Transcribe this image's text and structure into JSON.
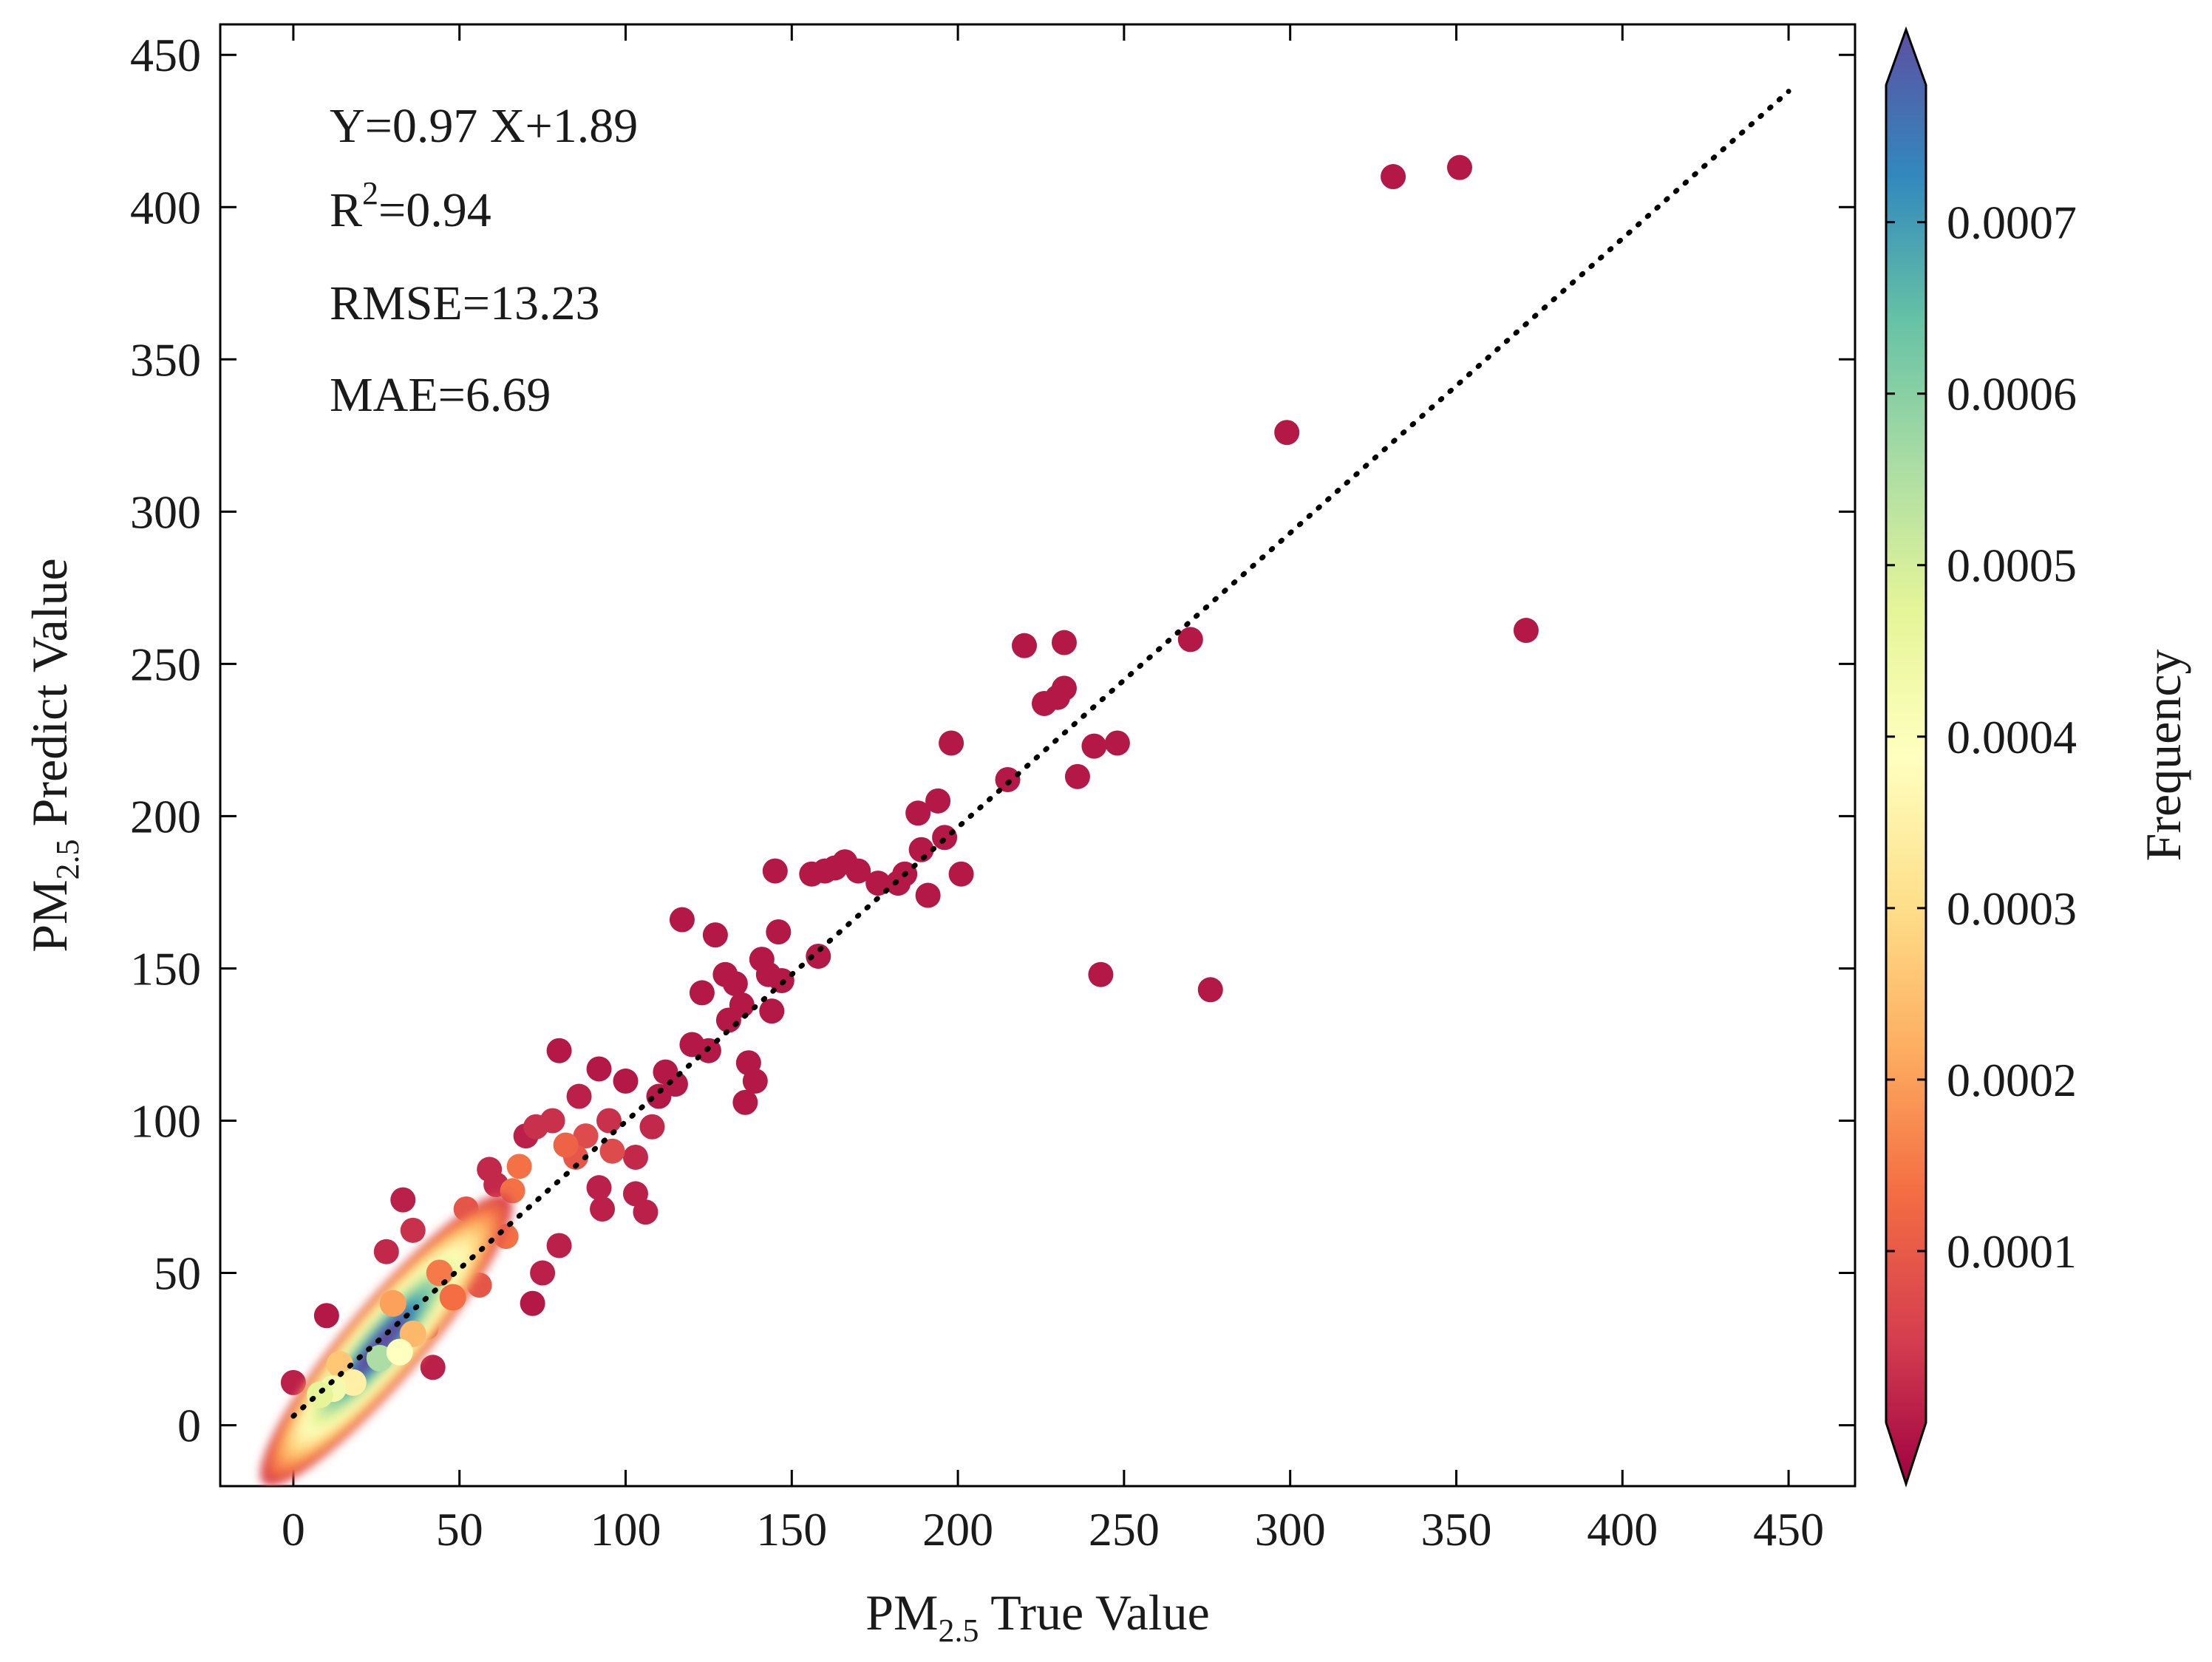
{
  "chart_data": {
    "type": "scatter",
    "title": "",
    "xlabel": {
      "base": "PM",
      "sub": "2.5",
      "rest": " True Value"
    },
    "ylabel": {
      "base": "PM",
      "sub": "2.5",
      "rest": " Predict Value"
    },
    "xlim": [
      -22,
      470
    ],
    "ylim": [
      -20,
      460
    ],
    "x_ticks": [
      0,
      50,
      100,
      150,
      200,
      250,
      300,
      350,
      400,
      450
    ],
    "x_tick_labels": [
      "0",
      "50",
      "100",
      "150",
      "200",
      "250",
      "300",
      "350",
      "400",
      "450"
    ],
    "y_ticks": [
      0,
      50,
      100,
      150,
      200,
      250,
      300,
      350,
      400,
      450
    ],
    "y_tick_labels": [
      "0",
      "50",
      "100",
      "150",
      "200",
      "250",
      "300",
      "350",
      "400",
      "450"
    ],
    "grid": false,
    "annotations": {
      "equation": "Y=0.97 X+1.89",
      "r2_base": "R",
      "r2_sup": "2",
      "r2_value": "=0.94",
      "rmse": "RMSE=13.23",
      "mae": "MAE=6.69"
    },
    "reference_line": {
      "style": "dotted",
      "color": "#000000",
      "from": [
        0,
        3
      ],
      "to": [
        450,
        438
      ]
    },
    "colorbar": {
      "label": "Frequency",
      "cmap": "Spectral",
      "range": [
        0,
        0.00078
      ],
      "ticks": [
        0.0001,
        0.0002,
        0.0003,
        0.0004,
        0.0005,
        0.0006,
        0.0007
      ],
      "tick_labels": [
        "0.0001",
        "0.0002",
        "0.0003",
        "0.0004",
        "0.0005",
        "0.0006",
        "0.0007"
      ],
      "extend": "both",
      "colors": [
        "#9e0142",
        "#d53e4f",
        "#f46d43",
        "#fdae61",
        "#fee08b",
        "#ffffbf",
        "#e6f598",
        "#abdda4",
        "#66c2a5",
        "#3288bd",
        "#5e4fa2"
      ]
    },
    "dense_cluster": {
      "description": "high-frequency core along the diagonal",
      "center": [
        24,
        26
      ],
      "density_core": 0.00078
    },
    "points": [
      [
        0,
        14,
        4e-05
      ],
      [
        10,
        36,
        3e-05
      ],
      [
        28,
        57,
        5e-05
      ],
      [
        33,
        74,
        4e-05
      ],
      [
        36,
        64,
        6e-05
      ],
      [
        42,
        19,
        4e-05
      ],
      [
        40,
        32,
        8e-05
      ],
      [
        47,
        55,
        0.0001
      ],
      [
        52,
        71,
        0.00012
      ],
      [
        56,
        46,
        0.00012
      ],
      [
        59,
        84,
        5e-05
      ],
      [
        61,
        79,
        5e-05
      ],
      [
        64,
        62,
        0.00016
      ],
      [
        66,
        77,
        0.00016
      ],
      [
        68,
        85,
        0.00016
      ],
      [
        70,
        95,
        4e-05
      ],
      [
        72,
        40,
        3e-05
      ],
      [
        75,
        50,
        4e-05
      ],
      [
        73,
        98,
        6e-05
      ],
      [
        78,
        100,
        6e-05
      ],
      [
        80,
        123,
        3e-05
      ],
      [
        80,
        59,
        4e-05
      ],
      [
        82,
        92,
        0.00014
      ],
      [
        85,
        88,
        0.00012
      ],
      [
        86,
        108,
        4e-05
      ],
      [
        88,
        95,
        0.0001
      ],
      [
        92,
        117,
        3e-05
      ],
      [
        92,
        78,
        4e-05
      ],
      [
        93,
        71,
        4e-05
      ],
      [
        95,
        100,
        6e-05
      ],
      [
        96,
        90,
        0.0001
      ],
      [
        100,
        113,
        3e-05
      ],
      [
        103,
        88,
        5e-05
      ],
      [
        103,
        76,
        4e-05
      ],
      [
        106,
        70,
        4e-05
      ],
      [
        108,
        98,
        5e-05
      ],
      [
        110,
        108,
        3e-05
      ],
      [
        112,
        116,
        3e-05
      ],
      [
        115,
        112,
        3e-05
      ],
      [
        117,
        166,
        3e-05
      ],
      [
        120,
        125,
        3e-05
      ],
      [
        123,
        142,
        3e-05
      ],
      [
        125,
        123,
        3e-05
      ],
      [
        127,
        161,
        3e-05
      ],
      [
        130,
        148,
        3e-05
      ],
      [
        131,
        133,
        3e-05
      ],
      [
        133,
        145,
        3e-05
      ],
      [
        135,
        138,
        3e-05
      ],
      [
        136,
        106,
        3e-05
      ],
      [
        137,
        119,
        3e-05
      ],
      [
        139,
        113,
        3e-05
      ],
      [
        141,
        153,
        3e-05
      ],
      [
        143,
        148,
        3e-05
      ],
      [
        144,
        136,
        3e-05
      ],
      [
        145,
        182,
        3e-05
      ],
      [
        146,
        162,
        3e-05
      ],
      [
        147,
        146,
        3e-05
      ],
      [
        156,
        181,
        3e-05
      ],
      [
        158,
        154,
        3e-05
      ],
      [
        160,
        182,
        3e-05
      ],
      [
        163,
        183,
        3e-05
      ],
      [
        166,
        185,
        3e-05
      ],
      [
        170,
        182,
        3e-05
      ],
      [
        176,
        178,
        3e-05
      ],
      [
        182,
        178,
        3e-05
      ],
      [
        184,
        181,
        3e-05
      ],
      [
        188,
        201,
        3e-05
      ],
      [
        189,
        189,
        3e-05
      ],
      [
        191,
        174,
        3e-05
      ],
      [
        194,
        205,
        3e-05
      ],
      [
        196,
        193,
        3e-05
      ],
      [
        198,
        224,
        3e-05
      ],
      [
        201,
        181,
        3e-05
      ],
      [
        215,
        212,
        3e-05
      ],
      [
        220,
        256,
        3e-05
      ],
      [
        226,
        237,
        3e-05
      ],
      [
        230,
        239,
        3e-05
      ],
      [
        232,
        257,
        3e-05
      ],
      [
        232,
        242,
        3e-05
      ],
      [
        236,
        213,
        3e-05
      ],
      [
        241,
        223,
        3e-05
      ],
      [
        243,
        148,
        3e-05
      ],
      [
        248,
        224,
        3e-05
      ],
      [
        270,
        258,
        3e-05
      ],
      [
        276,
        143,
        3e-05
      ],
      [
        299,
        326,
        3e-05
      ],
      [
        331,
        410,
        3e-05
      ],
      [
        351,
        413,
        3e-05
      ],
      [
        371,
        261,
        3e-05
      ]
    ]
  }
}
